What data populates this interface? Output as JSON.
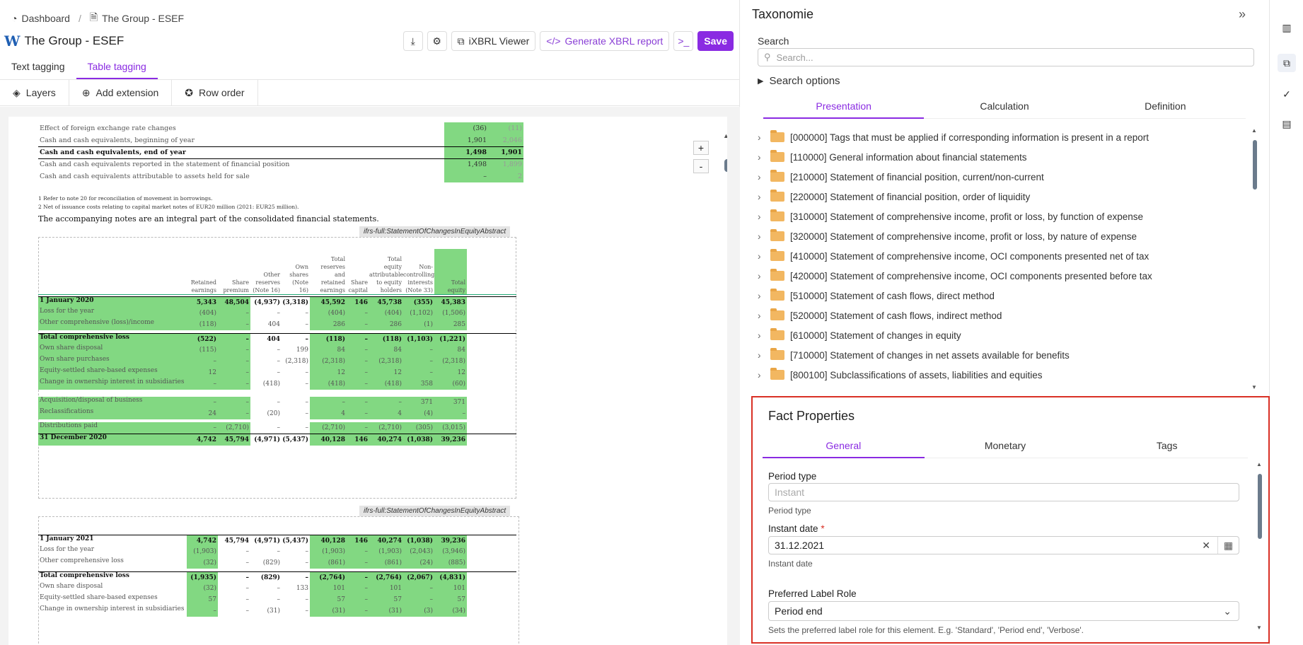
{
  "breadcrumb": {
    "home": "Dashboard",
    "sep": "/",
    "current": "The Group - ESEF"
  },
  "header": {
    "logo": "W",
    "title": "The Group - ESEF"
  },
  "actions": {
    "ixbrl": "iXBRL Viewer",
    "generate": "Generate XBRL report",
    "save": "Save"
  },
  "tabs": [
    {
      "label": "Text tagging"
    },
    {
      "label": "Table tagging"
    }
  ],
  "toolbar": {
    "layers": "Layers",
    "extension": "Add extension",
    "roworder": "Row order"
  },
  "zoom": {
    "plus": "+",
    "minus": "-"
  },
  "doc": {
    "cash_rows": [
      {
        "label": "Effect of foreign exchange rate changes",
        "a": "(36)",
        "b": "(11)"
      },
      {
        "label": "Cash and cash equivalents, beginning of year",
        "a": "1,901",
        "b": "2,046"
      },
      {
        "label": "Cash and cash equivalents, end of year",
        "a": "1,498",
        "b": "1,901"
      },
      {
        "label": "Cash and cash equivalents reported in the statement of financial position",
        "a": "1,498",
        "b": "1,899"
      },
      {
        "label": "Cash and cash equivalents attributable to assets held for sale",
        "a": "–",
        "b": "2"
      }
    ],
    "footnote1": "1    Refer to note 20 for reconciliation of movement in borrowings.",
    "footnote2": "2    Net of issuance costs relating to capital market notes of EUR20 million (2021: EUR25 million).",
    "accompany": "The accompanying notes are an integral part of the consolidated financial statements.",
    "tag1": "ifrs-full:StatementOfChangesInEquityAbstract",
    "tag2": "ifrs-full:StatementOfChangesInEquityAbstract",
    "headers": [
      "Retained earnings",
      "Share premium",
      "Other reserves (Note 16)",
      "Own shares (Note 16)",
      "Total reserves and retained earnings",
      "Share capital",
      "Total equity attributable to equity holders",
      "Non-controlling interests (Note 33)",
      "Total equity"
    ],
    "rows2020": [
      {
        "label": "1 January 2020",
        "v": [
          "5,343",
          "48,504",
          "(4,937)",
          "(3,318)",
          "45,592",
          "146",
          "45,738",
          "(355)",
          "45,383"
        ]
      },
      {
        "label": "Loss for the year",
        "v": [
          "(404)",
          "–",
          "–",
          "–",
          "(404)",
          "–",
          "(404)",
          "(1,102)",
          "(1,506)"
        ]
      },
      {
        "label": "Other comprehensive (loss)/income",
        "v": [
          "(118)",
          "–",
          "404",
          "–",
          "286",
          "–",
          "286",
          "(1)",
          "285"
        ]
      },
      {
        "label": "Total comprehensive loss",
        "v": [
          "(522)",
          "–",
          "404",
          "–",
          "(118)",
          "–",
          "(118)",
          "(1,103)",
          "(1,221)"
        ]
      },
      {
        "label": "Own share disposal",
        "v": [
          "(115)",
          "–",
          "–",
          "199",
          "84",
          "–",
          "84",
          "–",
          "84"
        ]
      },
      {
        "label": "Own share purchases",
        "v": [
          "–",
          "–",
          "–",
          "(2,318)",
          "(2,318)",
          "–",
          "(2,318)",
          "–",
          "(2,318)"
        ]
      },
      {
        "label": "Equity-settled share-based expenses",
        "v": [
          "12",
          "–",
          "–",
          "–",
          "12",
          "–",
          "12",
          "–",
          "12"
        ]
      },
      {
        "label": "Change in ownership interest in subsidiaries",
        "v": [
          "–",
          "–",
          "(418)",
          "–",
          "(418)",
          "–",
          "(418)",
          "358",
          "(60)"
        ]
      },
      {
        "label": "Acquisition/disposal of business",
        "v": [
          "–",
          "–",
          "–",
          "–",
          "–",
          "–",
          "–",
          "371",
          "371"
        ]
      },
      {
        "label": "Reclassifications",
        "v": [
          "24",
          "–",
          "(20)",
          "–",
          "4",
          "–",
          "4",
          "(4)",
          "–"
        ]
      },
      {
        "label": "Distributions paid",
        "v": [
          "–",
          "(2,710)",
          "–",
          "–",
          "(2,710)",
          "–",
          "(2,710)",
          "(305)",
          "(3,015)"
        ]
      },
      {
        "label": "31 December 2020",
        "v": [
          "4,742",
          "45,794",
          "(4,971)",
          "(5,437)",
          "40,128",
          "146",
          "40,274",
          "(1,038)",
          "39,236"
        ]
      }
    ],
    "rows2021": [
      {
        "label": "1 January 2021",
        "v": [
          "4,742",
          "45,794",
          "(4,971)",
          "(5,437)",
          "40,128",
          "146",
          "40,274",
          "(1,038)",
          "39,236"
        ]
      },
      {
        "label": "Loss for the year",
        "v": [
          "(1,903)",
          "–",
          "–",
          "–",
          "(1,903)",
          "–",
          "(1,903)",
          "(2,043)",
          "(3,946)"
        ]
      },
      {
        "label": "Other comprehensive loss",
        "v": [
          "(32)",
          "–",
          "(829)",
          "–",
          "(861)",
          "–",
          "(861)",
          "(24)",
          "(885)"
        ]
      },
      {
        "label": "Total comprehensive loss",
        "v": [
          "(1,935)",
          "–",
          "(829)",
          "–",
          "(2,764)",
          "–",
          "(2,764)",
          "(2,067)",
          "(4,831)"
        ]
      },
      {
        "label": "Own share disposal",
        "v": [
          "(32)",
          "–",
          "–",
          "133",
          "101",
          "–",
          "101",
          "–",
          "101"
        ]
      },
      {
        "label": "Equity-settled share-based expenses",
        "v": [
          "57",
          "–",
          "–",
          "–",
          "57",
          "–",
          "57",
          "–",
          "57"
        ]
      },
      {
        "label": "Change in ownership interest in subsidiaries",
        "v": [
          "–",
          "–",
          "(31)",
          "–",
          "(31)",
          "–",
          "(31)",
          "(3)",
          "(34)"
        ]
      }
    ]
  },
  "taxonomy": {
    "title": "Taxonomie",
    "search_label": "Search",
    "search_placeholder": "Search...",
    "search_options": "Search options",
    "tabs": [
      {
        "label": "Presentation"
      },
      {
        "label": "Calculation"
      },
      {
        "label": "Definition"
      }
    ],
    "nodes": [
      "[000000] Tags that must be applied if corresponding information is present in a report",
      "[110000] General information about financial statements",
      "[210000] Statement of financial position, current/non-current",
      "[220000] Statement of financial position, order of liquidity",
      "[310000] Statement of comprehensive income, profit or loss, by function of expense",
      "[320000] Statement of comprehensive income, profit or loss, by nature of expense",
      "[410000] Statement of comprehensive income, OCI components presented net of tax",
      "[420000] Statement of comprehensive income, OCI components presented before tax",
      "[510000] Statement of cash flows, direct method",
      "[520000] Statement of cash flows, indirect method",
      "[610000] Statement of changes in equity",
      "[710000] Statement of changes in net assets available for benefits",
      "[800100] Subclassifications of assets, liabilities and equities"
    ]
  },
  "fact": {
    "title": "Fact Properties",
    "tabs": [
      {
        "label": "General"
      },
      {
        "label": "Monetary"
      },
      {
        "label": "Tags"
      }
    ],
    "period_type_label": "Period type",
    "period_type_placeholder": "Instant",
    "period_type_hint": "Period type",
    "instant_label": "Instant date",
    "instant_required": "*",
    "instant_value": "31.12.2021",
    "instant_hint": "Instant date",
    "role_label": "Preferred Label Role",
    "role_value": "Period end",
    "role_hint": "Sets the preferred label role for this element. E.g. 'Standard', 'Period end', 'Verbose'."
  },
  "colors": {
    "accent": "#8a2be2",
    "tagged": "#82d882",
    "highlight": "#d93025"
  }
}
